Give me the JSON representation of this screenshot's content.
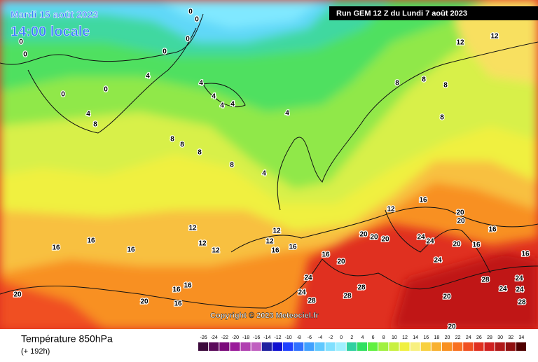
{
  "header": {
    "date": "Mardi 15 août 2023",
    "time": "14:00 locale",
    "run": "Run GEM 12 Z du Lundi 7 août 2023"
  },
  "map": {
    "copyright": "Copyright © 2023 Meteociel.fr",
    "contour_labels": [
      0,
      0,
      0,
      0,
      0,
      0,
      0,
      0,
      4,
      4,
      4,
      4,
      4,
      4,
      4,
      4,
      8,
      8,
      8,
      8,
      8,
      8,
      8,
      8,
      8,
      12,
      12,
      12,
      12,
      12,
      12,
      12,
      12,
      16,
      16,
      16,
      16,
      16,
      16,
      16,
      16,
      16,
      16,
      16,
      16,
      16,
      20,
      20,
      20,
      20,
      20,
      20,
      20,
      20,
      20,
      20,
      20,
      24,
      24,
      24,
      24,
      24,
      24,
      24,
      24,
      28,
      28,
      28,
      28,
      28
    ]
  },
  "footer": {
    "title": "Température 850hPa",
    "lead": "(+ 192h)"
  },
  "color_scale": {
    "values": [
      -26,
      -24,
      -22,
      -20,
      -18,
      -16,
      -14,
      -12,
      -10,
      -8,
      -6,
      -4,
      -2,
      0,
      2,
      4,
      6,
      8,
      10,
      12,
      14,
      16,
      18,
      20,
      22,
      24,
      26,
      28,
      30,
      32,
      34
    ],
    "colors": [
      "#3c0a3c",
      "#5a0a5a",
      "#7a0a7a",
      "#9a1a9a",
      "#b040b0",
      "#c060c0",
      "#2020a0",
      "#1010d0",
      "#2040ff",
      "#3070ff",
      "#40a0ff",
      "#60c8ff",
      "#80e0ff",
      "#a0f0ff",
      "#30d0a0",
      "#30e060",
      "#60f040",
      "#a0f040",
      "#c8f040",
      "#f0f040",
      "#f8f080",
      "#f8d040",
      "#f8b030",
      "#f89020",
      "#f87020",
      "#f05020",
      "#e03020",
      "#d02020",
      "#b01818",
      "#901010",
      "#500000"
    ]
  }
}
